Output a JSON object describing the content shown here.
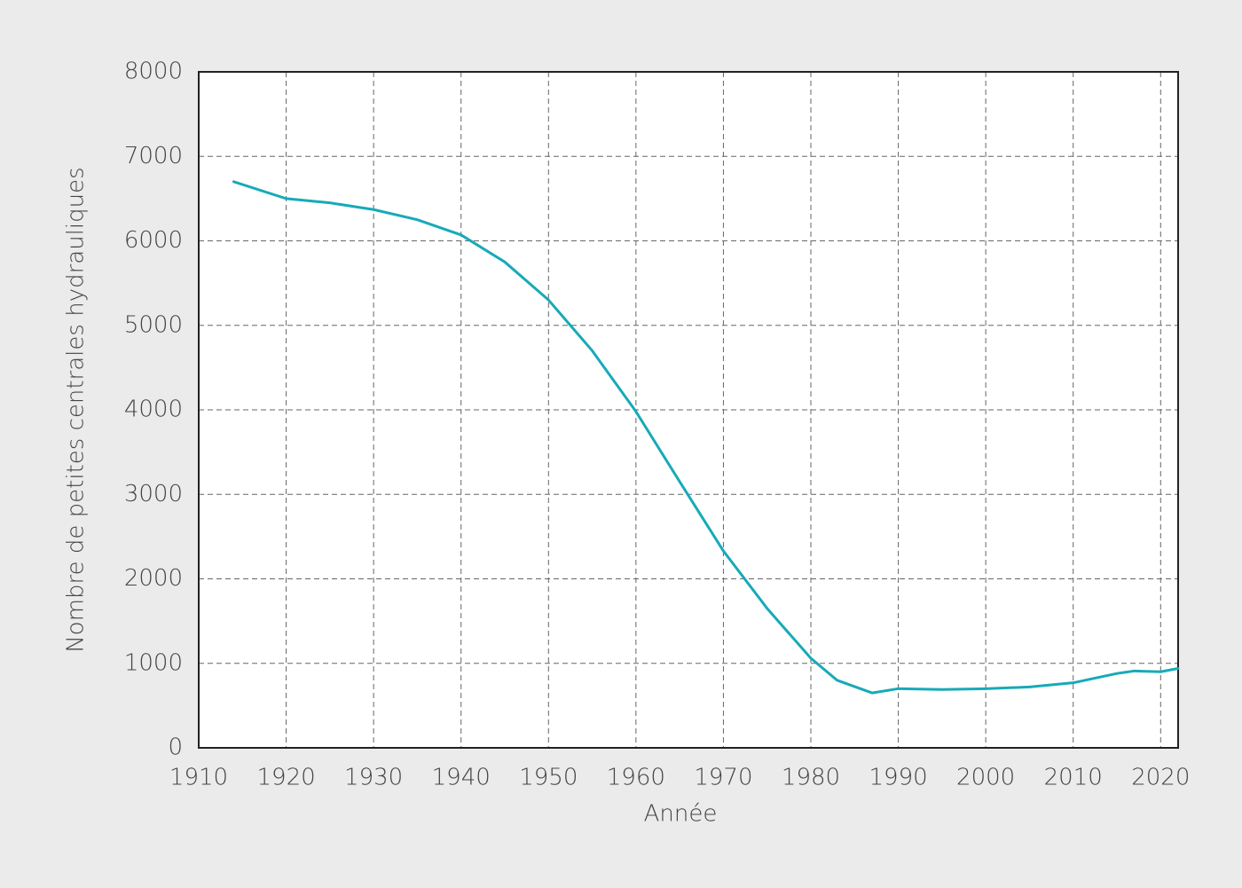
{
  "chart_data": {
    "type": "line",
    "x_label": "Année",
    "y_label": "Nombre de petites centrales hydrauliques",
    "x": [
      1914,
      1920,
      1925,
      1930,
      1935,
      1940,
      1945,
      1950,
      1955,
      1960,
      1965,
      1970,
      1975,
      1980,
      1983,
      1987,
      1990,
      1995,
      2000,
      2005,
      2010,
      2015,
      2017,
      2020,
      2022
    ],
    "series": [
      {
        "name": "Petites centrales hydrauliques",
        "color": "#17aab8",
        "values": [
          6700,
          6500,
          6450,
          6370,
          6250,
          6070,
          5750,
          5300,
          4700,
          3980,
          3150,
          2330,
          1650,
          1060,
          800,
          650,
          700,
          690,
          700,
          720,
          770,
          880,
          910,
          900,
          940
        ]
      }
    ],
    "xlim": [
      1910,
      2022
    ],
    "ylim": [
      0,
      8000
    ],
    "xticks": [
      1910,
      1920,
      1930,
      1940,
      1950,
      1960,
      1970,
      1980,
      1990,
      2000,
      2010,
      2020
    ],
    "yticks": [
      0,
      1000,
      2000,
      3000,
      4000,
      5000,
      6000,
      7000,
      8000
    ],
    "grid": true
  }
}
